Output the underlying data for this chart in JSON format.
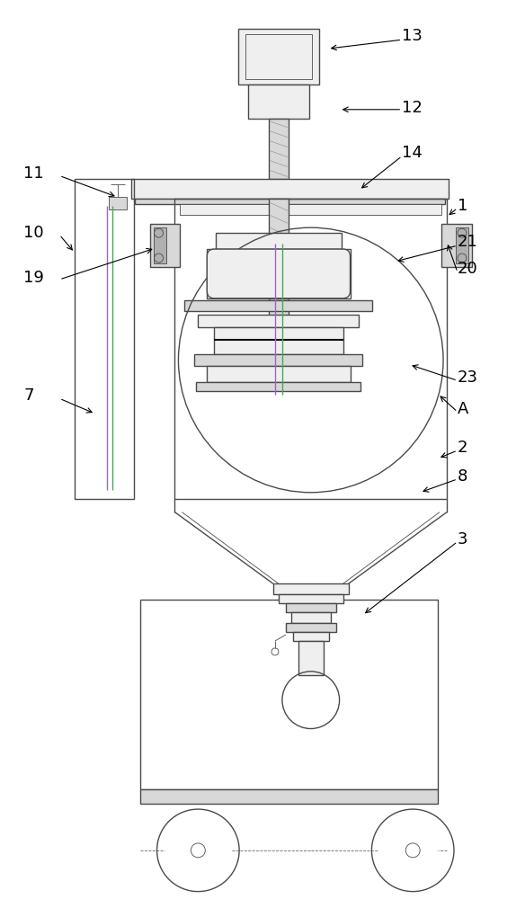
{
  "bg_color": "#ffffff",
  "line_color": "#4a4a4a",
  "label_color": "#000000",
  "lw": 1.0,
  "tlw": 0.6,
  "gray_fill": "#d8d8d8",
  "light_fill": "#efefef",
  "mid_fill": "#c8c8c8",
  "hatch_fill": "#b0b0b0"
}
